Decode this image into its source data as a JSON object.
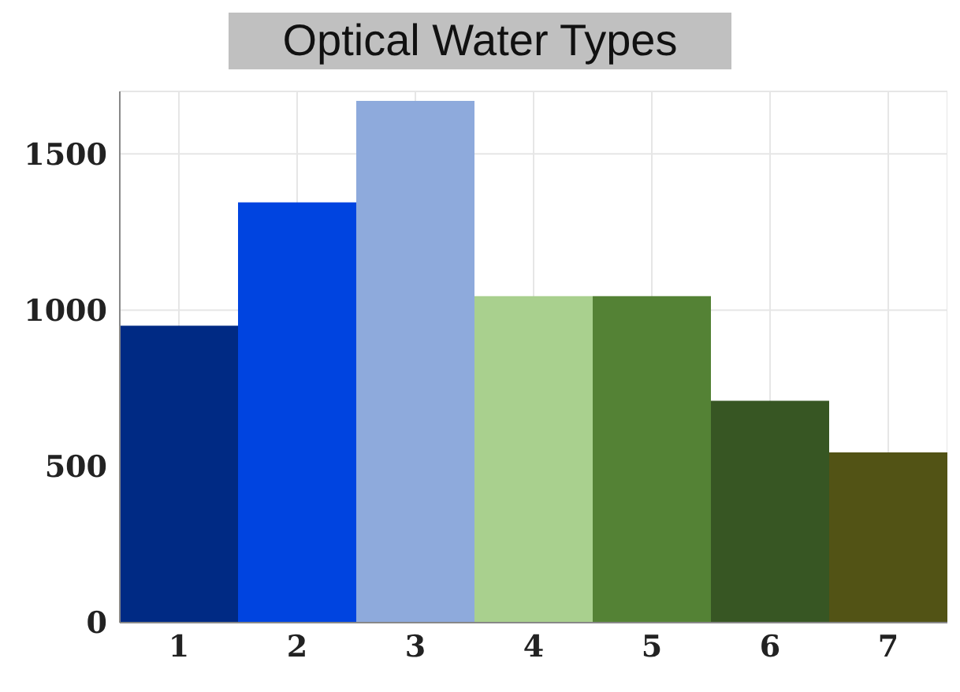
{
  "chart_data": {
    "type": "bar",
    "title": "Optical Water Types",
    "categories": [
      "1",
      "2",
      "3",
      "4",
      "5",
      "6",
      "7"
    ],
    "values": [
      950,
      1345,
      1670,
      1045,
      1045,
      710,
      545
    ],
    "colors": [
      "#002a84",
      "#0044e0",
      "#8eaadc",
      "#a9d08e",
      "#548235",
      "#375623",
      "#525315"
    ],
    "ylim": [
      0,
      1700
    ],
    "yticks": [
      0,
      500,
      1000,
      1500
    ],
    "grid": true
  }
}
